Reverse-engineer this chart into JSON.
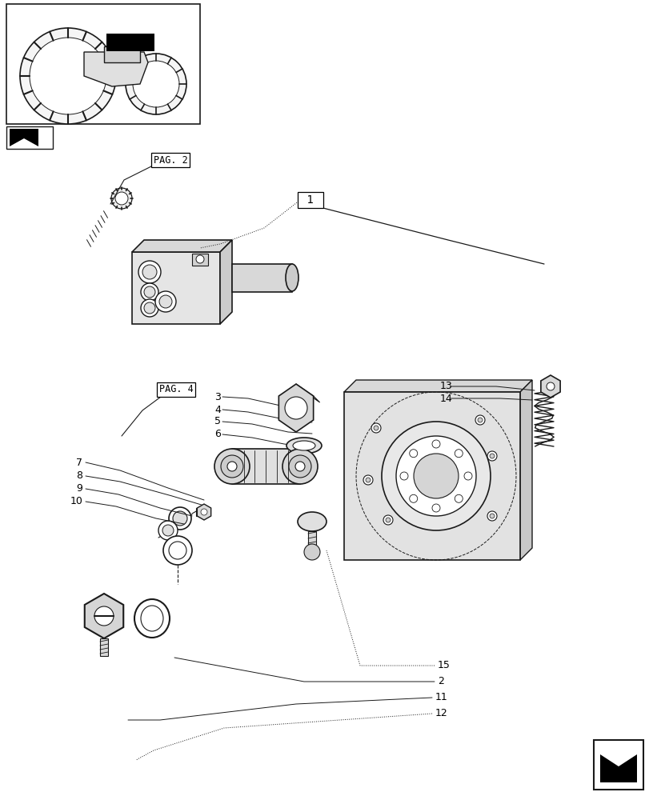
{
  "bg_color": "#ffffff",
  "line_color": "#1a1a1a",
  "gray1": "#d8d8d8",
  "gray2": "#e8e8e8",
  "gray3": "#c0c0c0",
  "fig_width": 8.12,
  "fig_height": 10.0,
  "pag2_label": "PAG. 2",
  "pag4_label": "PAG. 4",
  "label1": "1",
  "label2": "2",
  "label3": "3",
  "label4": "4",
  "label5": "5",
  "label6": "6",
  "label7": "7",
  "label8": "8",
  "label9": "9",
  "label10": "10",
  "label11": "11",
  "label12": "12",
  "label13": "13",
  "label14": "14",
  "label15": "15"
}
